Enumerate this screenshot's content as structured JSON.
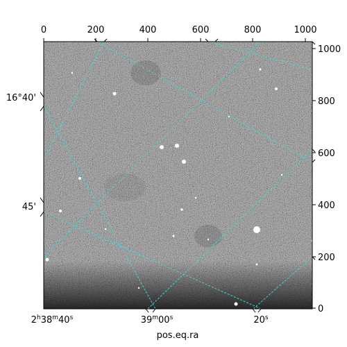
{
  "colors": {
    "grid": "#3fd7d7",
    "frame": "#000000",
    "background": "#ffffff"
  },
  "axes": {
    "top_ticks": [
      "0",
      "200",
      "400",
      "600",
      "800",
      "1000"
    ],
    "right_ticks": [
      "0",
      "200",
      "400",
      "600",
      "800",
      "1000"
    ],
    "left_ticks": [
      "16°40'",
      "45'"
    ],
    "bottom_ticks": [
      {
        "main": "2",
        "sup1": "h",
        "mid": "38",
        "sup2": "m",
        "tail": "40",
        "sup3": "s"
      },
      {
        "main": "39",
        "sup1": "m",
        "mid": "00",
        "sup2": "s",
        "tail": "",
        "sup3": ""
      },
      {
        "main": "20",
        "sup1": "s",
        "mid": "",
        "sup2": "",
        "tail": "",
        "sup3": ""
      }
    ],
    "xlabel": "pos.eq.ra"
  }
}
